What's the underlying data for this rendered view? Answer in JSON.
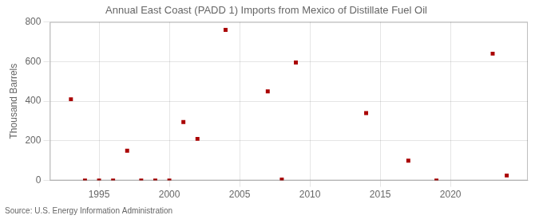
{
  "chart_data": {
    "type": "scatter",
    "title": "Annual East Coast (PADD 1) Imports from Mexico of Distillate Fuel Oil",
    "ylabel": "Thousand Barrels",
    "source": "Source: U.S. Energy Information Administration",
    "x": [
      1993,
      1994,
      1995,
      1996,
      1997,
      1998,
      1999,
      2000,
      2001,
      2002,
      2004,
      2007,
      2008,
      2009,
      2014,
      2017,
      2019,
      2023,
      2024
    ],
    "values": [
      410,
      0,
      0,
      0,
      150,
      0,
      0,
      0,
      295,
      210,
      760,
      450,
      5,
      595,
      340,
      100,
      0,
      640,
      25
    ],
    "color": "#aa0000",
    "marker": "square",
    "xlim": [
      1991.5,
      2025.5
    ],
    "xticks": [
      1995,
      2000,
      2005,
      2010,
      2015,
      2020
    ],
    "ylim": [
      0,
      800
    ],
    "yticks": [
      0,
      200,
      400,
      600,
      800
    ],
    "grid": true
  }
}
